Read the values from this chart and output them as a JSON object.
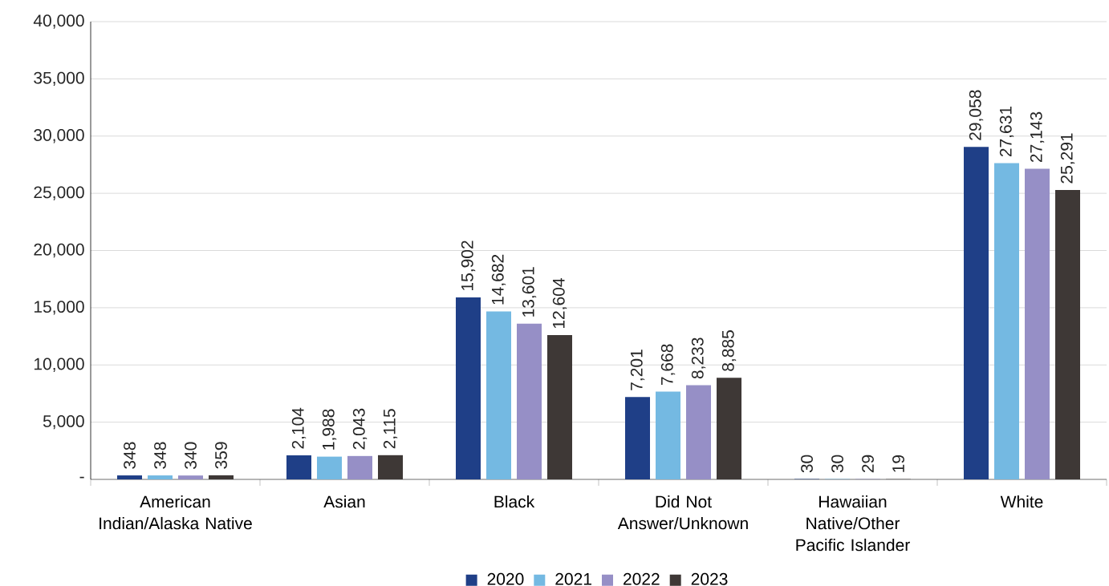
{
  "chart_data": {
    "type": "bar",
    "categories": [
      "American Indian/Alaska Native",
      "Asian",
      "Black",
      "Did Not Answer/Unknown",
      "Hawaiian Native/Other Pacific Islander",
      "White"
    ],
    "series": [
      {
        "name": "2020",
        "color": "#1f3f87",
        "values": [
          348,
          2104,
          15902,
          7201,
          30,
          29058
        ],
        "value_labels": [
          "348",
          "2,104",
          "15,902",
          "7,201",
          "30",
          "29,058"
        ]
      },
      {
        "name": "2021",
        "color": "#74b9e2",
        "values": [
          348,
          1988,
          14682,
          7668,
          30,
          27631
        ],
        "value_labels": [
          "348",
          "1,988",
          "14,682",
          "7,668",
          "30",
          "27,631"
        ]
      },
      {
        "name": "2022",
        "color": "#968fc6",
        "values": [
          340,
          2043,
          13601,
          8233,
          29,
          27143
        ],
        "value_labels": [
          "340",
          "2,043",
          "13,601",
          "8,233",
          "29",
          "27,143"
        ]
      },
      {
        "name": "2023",
        "color": "#3e3836",
        "values": [
          359,
          2115,
          12604,
          8885,
          19,
          25291
        ],
        "value_labels": [
          "359",
          "2,115",
          "12,604",
          "8,885",
          "19",
          "25,291"
        ]
      }
    ],
    "ylim": [
      0,
      40000
    ],
    "yticks": [
      {
        "value": 0,
        "label": "-"
      },
      {
        "value": 5000,
        "label": "5,000"
      },
      {
        "value": 10000,
        "label": "10,000"
      },
      {
        "value": 15000,
        "label": "15,000"
      },
      {
        "value": 20000,
        "label": "20,000"
      },
      {
        "value": 25000,
        "label": "25,000"
      },
      {
        "value": 30000,
        "label": "30,000"
      },
      {
        "value": 35000,
        "label": "35,000"
      },
      {
        "value": 40000,
        "label": "40,000"
      }
    ],
    "grid": "y",
    "legend": "bottom"
  }
}
